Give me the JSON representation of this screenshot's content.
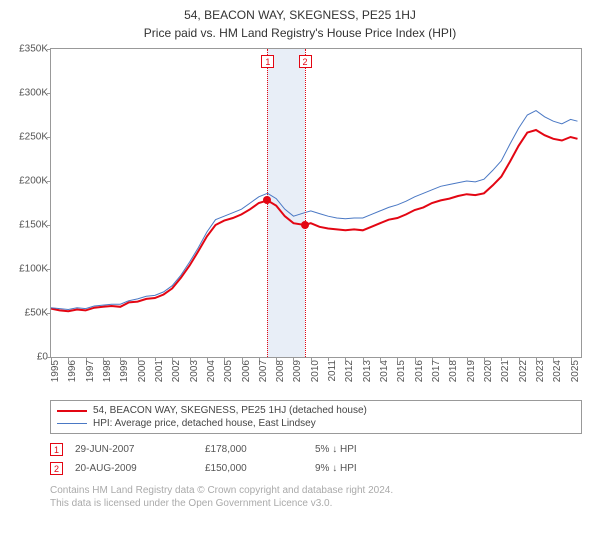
{
  "title": "54, BEACON WAY, SKEGNESS, PE25 1HJ",
  "subtitle": "Price paid vs. HM Land Registry's House Price Index (HPI)",
  "chart": {
    "type": "line",
    "ylim": [
      0,
      350000
    ],
    "ytick_step": 50000,
    "ytick_labels": [
      "£0",
      "£50K",
      "£100K",
      "£150K",
      "£200K",
      "£250K",
      "£300K",
      "£350K"
    ],
    "x_years": [
      1995,
      1996,
      1997,
      1998,
      1999,
      2000,
      2001,
      2002,
      2003,
      2004,
      2005,
      2006,
      2007,
      2008,
      2009,
      2010,
      2011,
      2012,
      2013,
      2014,
      2015,
      2016,
      2017,
      2018,
      2019,
      2020,
      2021,
      2022,
      2023,
      2024,
      2025
    ],
    "x_range": [
      1995,
      2025.6
    ],
    "background_color": "#ffffff",
    "border_color": "#999999",
    "ylabel_fontsize": 10,
    "xlabel_fontsize": 10,
    "highlight_band": {
      "from_year": 2007.49,
      "to_year": 2009.64,
      "color": "#e8eef7"
    },
    "series": [
      {
        "name": "price_paid",
        "label": "54, BEACON WAY, SKEGNESS, PE25 1HJ (detached house)",
        "color": "#e30613",
        "width": 2,
        "points": [
          [
            1995.0,
            55000
          ],
          [
            1995.5,
            53000
          ],
          [
            1996.0,
            52000
          ],
          [
            1996.5,
            54000
          ],
          [
            1997.0,
            53000
          ],
          [
            1997.5,
            56000
          ],
          [
            1998.0,
            57000
          ],
          [
            1998.5,
            58000
          ],
          [
            1999.0,
            57000
          ],
          [
            1999.5,
            62000
          ],
          [
            2000.0,
            63000
          ],
          [
            2000.5,
            66000
          ],
          [
            2001.0,
            67000
          ],
          [
            2001.5,
            71000
          ],
          [
            2002.0,
            78000
          ],
          [
            2002.5,
            90000
          ],
          [
            2003.0,
            104000
          ],
          [
            2003.5,
            120000
          ],
          [
            2004.0,
            137000
          ],
          [
            2004.5,
            150000
          ],
          [
            2005.0,
            155000
          ],
          [
            2005.5,
            158000
          ],
          [
            2006.0,
            162000
          ],
          [
            2006.5,
            168000
          ],
          [
            2007.0,
            175000
          ],
          [
            2007.5,
            178000
          ],
          [
            2008.0,
            172000
          ],
          [
            2008.5,
            160000
          ],
          [
            2009.0,
            152000
          ],
          [
            2009.64,
            150000
          ],
          [
            2010.0,
            152000
          ],
          [
            2010.5,
            148000
          ],
          [
            2011.0,
            146000
          ],
          [
            2011.5,
            145000
          ],
          [
            2012.0,
            144000
          ],
          [
            2012.5,
            145000
          ],
          [
            2013.0,
            144000
          ],
          [
            2013.5,
            148000
          ],
          [
            2014.0,
            152000
          ],
          [
            2014.5,
            156000
          ],
          [
            2015.0,
            158000
          ],
          [
            2015.5,
            162000
          ],
          [
            2016.0,
            167000
          ],
          [
            2016.5,
            170000
          ],
          [
            2017.0,
            175000
          ],
          [
            2017.5,
            178000
          ],
          [
            2018.0,
            180000
          ],
          [
            2018.5,
            183000
          ],
          [
            2019.0,
            185000
          ],
          [
            2019.5,
            184000
          ],
          [
            2020.0,
            186000
          ],
          [
            2020.5,
            195000
          ],
          [
            2021.0,
            205000
          ],
          [
            2021.5,
            222000
          ],
          [
            2022.0,
            240000
          ],
          [
            2022.5,
            255000
          ],
          [
            2023.0,
            258000
          ],
          [
            2023.5,
            252000
          ],
          [
            2024.0,
            248000
          ],
          [
            2024.5,
            246000
          ],
          [
            2025.0,
            250000
          ],
          [
            2025.4,
            248000
          ]
        ]
      },
      {
        "name": "hpi",
        "label": "HPI: Average price, detached house, East Lindsey",
        "color": "#4a78c4",
        "width": 1,
        "points": [
          [
            1995.0,
            56000
          ],
          [
            1995.5,
            55000
          ],
          [
            1996.0,
            54000
          ],
          [
            1996.5,
            56000
          ],
          [
            1997.0,
            55000
          ],
          [
            1997.5,
            58000
          ],
          [
            1998.0,
            59000
          ],
          [
            1998.5,
            60000
          ],
          [
            1999.0,
            60000
          ],
          [
            1999.5,
            64000
          ],
          [
            2000.0,
            66000
          ],
          [
            2000.5,
            69000
          ],
          [
            2001.0,
            70000
          ],
          [
            2001.5,
            74000
          ],
          [
            2002.0,
            81000
          ],
          [
            2002.5,
            93000
          ],
          [
            2003.0,
            108000
          ],
          [
            2003.5,
            124000
          ],
          [
            2004.0,
            142000
          ],
          [
            2004.5,
            156000
          ],
          [
            2005.0,
            160000
          ],
          [
            2005.5,
            164000
          ],
          [
            2006.0,
            168000
          ],
          [
            2006.5,
            175000
          ],
          [
            2007.0,
            182000
          ],
          [
            2007.5,
            186000
          ],
          [
            2008.0,
            180000
          ],
          [
            2008.5,
            168000
          ],
          [
            2009.0,
            160000
          ],
          [
            2009.64,
            164000
          ],
          [
            2010.0,
            166000
          ],
          [
            2010.5,
            163000
          ],
          [
            2011.0,
            160000
          ],
          [
            2011.5,
            158000
          ],
          [
            2012.0,
            157000
          ],
          [
            2012.5,
            158000
          ],
          [
            2013.0,
            158000
          ],
          [
            2013.5,
            162000
          ],
          [
            2014.0,
            166000
          ],
          [
            2014.5,
            170000
          ],
          [
            2015.0,
            173000
          ],
          [
            2015.5,
            177000
          ],
          [
            2016.0,
            182000
          ],
          [
            2016.5,
            186000
          ],
          [
            2017.0,
            190000
          ],
          [
            2017.5,
            194000
          ],
          [
            2018.0,
            196000
          ],
          [
            2018.5,
            198000
          ],
          [
            2019.0,
            200000
          ],
          [
            2019.5,
            199000
          ],
          [
            2020.0,
            202000
          ],
          [
            2020.5,
            212000
          ],
          [
            2021.0,
            223000
          ],
          [
            2021.5,
            242000
          ],
          [
            2022.0,
            260000
          ],
          [
            2022.5,
            275000
          ],
          [
            2023.0,
            280000
          ],
          [
            2023.5,
            273000
          ],
          [
            2024.0,
            268000
          ],
          [
            2024.5,
            265000
          ],
          [
            2025.0,
            270000
          ],
          [
            2025.4,
            268000
          ]
        ]
      }
    ],
    "markers": [
      {
        "n": "1",
        "year": 2007.49,
        "price": 178000,
        "line_color": "#e30613",
        "box_border": "#e30613",
        "box_text": "#e30613",
        "point_color": "#e30613"
      },
      {
        "n": "2",
        "year": 2009.64,
        "price": 150000,
        "line_color": "#e30613",
        "box_border": "#e30613",
        "box_text": "#e30613",
        "point_color": "#e30613"
      }
    ]
  },
  "legend": {
    "border_color": "#999999",
    "items": [
      {
        "color": "#e30613",
        "width": 2,
        "label": "54, BEACON WAY, SKEGNESS, PE25 1HJ (detached house)"
      },
      {
        "color": "#4a78c4",
        "width": 1,
        "label": "HPI: Average price, detached house, East Lindsey"
      }
    ]
  },
  "annotations": [
    {
      "n": "1",
      "border": "#e30613",
      "text_color": "#e30613",
      "date": "29-JUN-2007",
      "price": "£178,000",
      "delta": "5% ↓ HPI"
    },
    {
      "n": "2",
      "border": "#e30613",
      "text_color": "#e30613",
      "date": "20-AUG-2009",
      "price": "£150,000",
      "delta": "9% ↓ HPI"
    }
  ],
  "footer": {
    "line1": "Contains HM Land Registry data © Crown copyright and database right 2024.",
    "line2": "This data is licensed under the Open Government Licence v3.0."
  }
}
